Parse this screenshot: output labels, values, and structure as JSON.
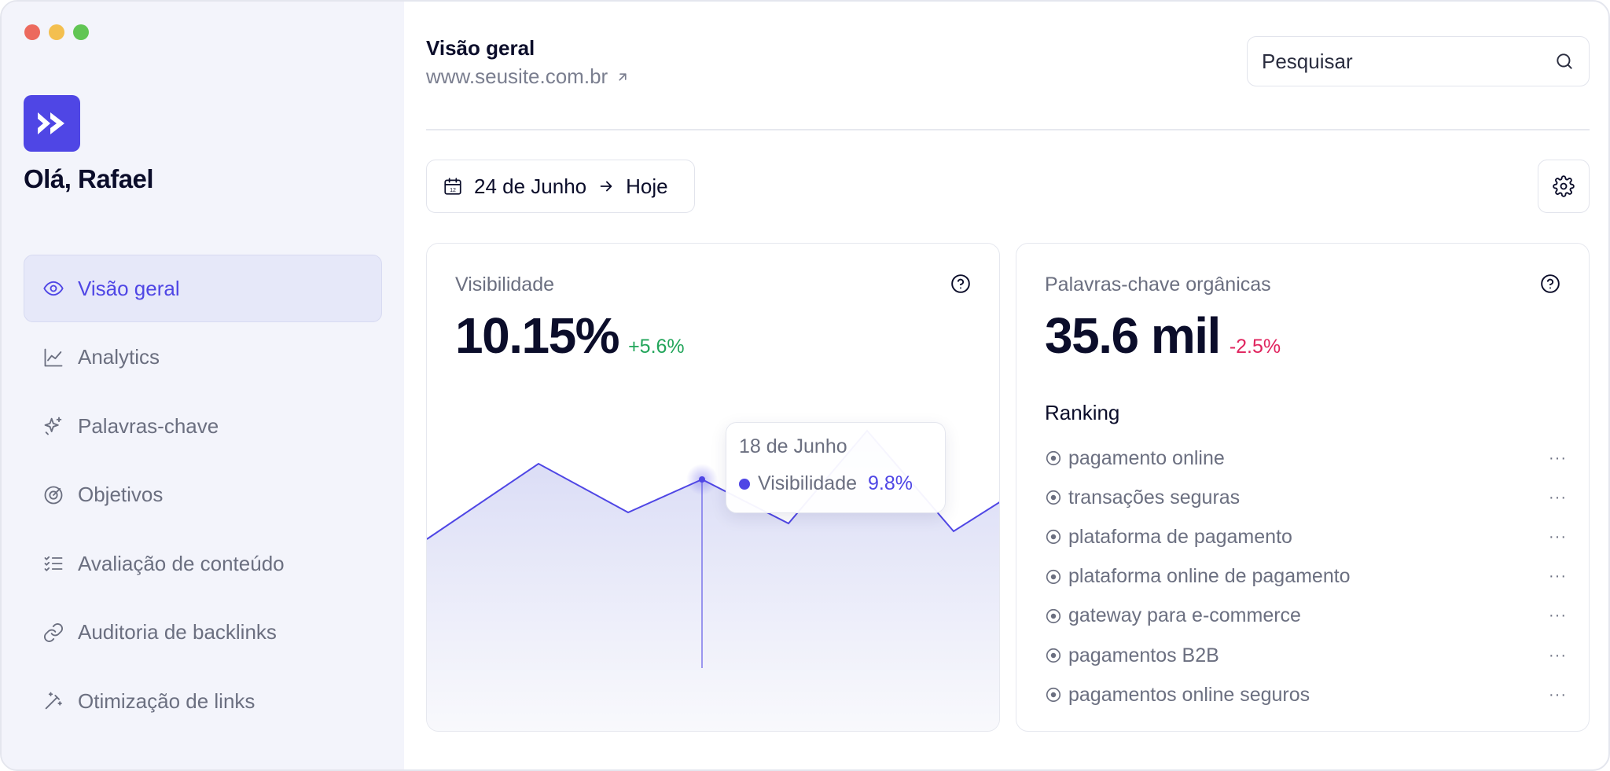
{
  "sidebar": {
    "greeting": "Olá, Rafael",
    "items": [
      {
        "label": "Visão geral",
        "icon": "eye-icon",
        "active": true
      },
      {
        "label": "Analytics",
        "icon": "line-chart-icon"
      },
      {
        "label": "Palavras-chave",
        "icon": "sparkle-icon"
      },
      {
        "label": "Objetivos",
        "icon": "target-icon"
      },
      {
        "label": "Avaliação de conteúdo",
        "icon": "checklist-icon"
      },
      {
        "label": "Auditoria de backlinks",
        "icon": "link-icon"
      },
      {
        "label": "Otimização de links",
        "icon": "magic-wand-icon"
      }
    ]
  },
  "header": {
    "title": "Visão geral",
    "site": "www.seusite.com.br",
    "search_placeholder": "Pesquisar"
  },
  "date_range": {
    "from": "24 de Junho",
    "to": "Hoje"
  },
  "visibility": {
    "label": "Visibilidade",
    "value": "10.15%",
    "delta": "+5.6%",
    "tooltip": {
      "date": "18 de Junho",
      "series": "Visibilidade",
      "value": "9.8%"
    }
  },
  "keywords": {
    "label": "Palavras-chave orgânicas",
    "value": "35.6 mil",
    "delta": "-2.5%",
    "ranking_title": "Ranking",
    "ranking": [
      "pagamento online",
      "transações seguras",
      "plataforma de pagamento",
      "plataforma online de pagamento",
      "gateway para e-commerce",
      "pagamentos B2B",
      "pagamentos online seguros"
    ]
  },
  "colors": {
    "accent": "#4f46e5",
    "positive": "#22a55a",
    "negative": "#e0245e",
    "sidebar_bg": "#f3f4fb"
  }
}
